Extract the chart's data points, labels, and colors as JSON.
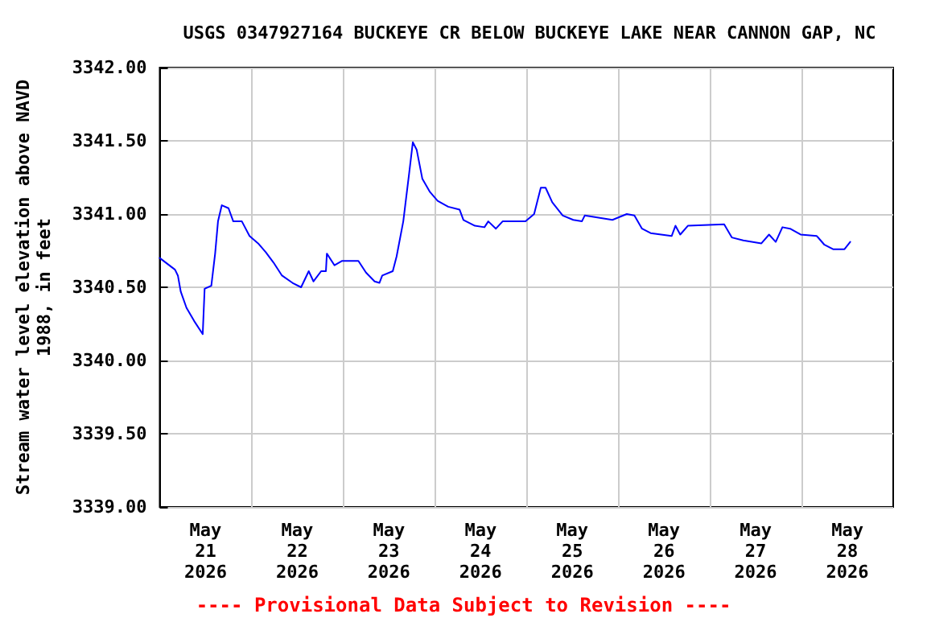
{
  "chart_data": {
    "type": "line",
    "title": "USGS 0347927164 BUCKEYE CR BELOW BUCKEYE LAKE NEAR CANNON GAP, NC",
    "ylabel": "Stream water level elevation above NAVD\n1988, in feet",
    "annotations": [
      "---- Provisional Data Subject to Revision ----"
    ],
    "xlim": [
      "2026-05-21T00:00",
      "2026-05-29T00:00"
    ],
    "xticks": [
      {
        "value": "2026-05-21T12:00",
        "label": "May\n21\n2026"
      },
      {
        "value": "2026-05-22T12:00",
        "label": "May\n22\n2026"
      },
      {
        "value": "2026-05-23T12:00",
        "label": "May\n23\n2026"
      },
      {
        "value": "2026-05-24T12:00",
        "label": "May\n24\n2026"
      },
      {
        "value": "2026-05-25T12:00",
        "label": "May\n25\n2026"
      },
      {
        "value": "2026-05-26T12:00",
        "label": "May\n26\n2026"
      },
      {
        "value": "2026-05-27T12:00",
        "label": "May\n27\n2026"
      },
      {
        "value": "2026-05-28T12:00",
        "label": "May\n28\n2026"
      },
      {
        "value": "2026-05-22T00:00",
        "label": null
      },
      {
        "value": "2026-05-23T00:00",
        "label": null
      },
      {
        "value": "2026-05-24T00:00",
        "label": null
      },
      {
        "value": "2026-05-25T00:00",
        "label": null
      },
      {
        "value": "2026-05-26T00:00",
        "label": null
      },
      {
        "value": "2026-05-27T00:00",
        "label": null
      },
      {
        "value": "2026-05-28T00:00",
        "label": null
      }
    ],
    "ylim": [
      3339,
      3342
    ],
    "yticks": [
      {
        "value": 3339,
        "label": "3339.00"
      },
      {
        "value": 3339.5,
        "label": "3339.50"
      },
      {
        "value": 3340,
        "label": "3340.00"
      },
      {
        "value": 3340.5,
        "label": "3340.50"
      },
      {
        "value": 3341,
        "label": "3341.00"
      },
      {
        "value": 3341.5,
        "label": "3341.50"
      },
      {
        "value": 3342,
        "label": "3342.00"
      }
    ],
    "grid": true,
    "marker": "none",
    "line_style": "solid",
    "series": [
      {
        "color": "#0000ff",
        "x": [
          "2026-05-21T00:00",
          "2026-05-21T04:00",
          "2026-05-21T04:45",
          "2026-05-21T05:30",
          "2026-05-21T07:00",
          "2026-05-21T09:00",
          "2026-05-21T11:15",
          "2026-05-21T11:45",
          "2026-05-21T13:30",
          "2026-05-21T14:30",
          "2026-05-21T15:15",
          "2026-05-21T16:15",
          "2026-05-21T18:00",
          "2026-05-21T19:15",
          "2026-05-21T21:30",
          "2026-05-21T23:30",
          "2026-05-22T01:45",
          "2026-05-22T03:45",
          "2026-05-22T05:45",
          "2026-05-22T08:00",
          "2026-05-22T10:45",
          "2026-05-22T13:00",
          "2026-05-22T15:00",
          "2026-05-22T16:15",
          "2026-05-22T18:15",
          "2026-05-22T19:30",
          "2026-05-22T19:45",
          "2026-05-22T21:45",
          "2026-05-22T23:45",
          "2026-05-23T04:00",
          "2026-05-23T06:00",
          "2026-05-23T08:15",
          "2026-05-23T09:30",
          "2026-05-23T10:15",
          "2026-05-23T13:00",
          "2026-05-23T14:00",
          "2026-05-23T15:45",
          "2026-05-23T17:15",
          "2026-05-23T18:15",
          "2026-05-23T19:15",
          "2026-05-23T20:45",
          "2026-05-23T22:45",
          "2026-05-24T00:45",
          "2026-05-24T03:30",
          "2026-05-24T06:30",
          "2026-05-24T07:30",
          "2026-05-24T10:30",
          "2026-05-24T13:00",
          "2026-05-24T14:00",
          "2026-05-24T16:00",
          "2026-05-24T17:45",
          "2026-05-24T23:45",
          "2026-05-25T02:00",
          "2026-05-25T03:45",
          "2026-05-25T05:00",
          "2026-05-25T06:45",
          "2026-05-25T09:30",
          "2026-05-25T12:15",
          "2026-05-25T14:30",
          "2026-05-25T15:15",
          "2026-05-25T22:30",
          "2026-05-26T02:15",
          "2026-05-26T04:15",
          "2026-05-26T06:15",
          "2026-05-26T08:30",
          "2026-05-26T14:00",
          "2026-05-26T15:00",
          "2026-05-26T16:15",
          "2026-05-26T18:15",
          "2026-05-27T03:45",
          "2026-05-27T05:45",
          "2026-05-27T08:45",
          "2026-05-27T13:30",
          "2026-05-27T15:30",
          "2026-05-27T17:15",
          "2026-05-27T19:00",
          "2026-05-27T21:00",
          "2026-05-27T23:45",
          "2026-05-28T04:00",
          "2026-05-28T06:00",
          "2026-05-28T08:15",
          "2026-05-28T11:15",
          "2026-05-28T12:45"
        ],
        "values": [
          3340.7,
          3340.62,
          3340.58,
          3340.47,
          3340.36,
          3340.27,
          3340.18,
          3340.49,
          3340.51,
          3340.73,
          3340.95,
          3341.06,
          3341.04,
          3340.95,
          3340.95,
          3340.85,
          3340.8,
          3340.74,
          3340.67,
          3340.58,
          3340.53,
          3340.5,
          3340.61,
          3340.54,
          3340.61,
          3340.61,
          3340.73,
          3340.65,
          3340.68,
          3340.68,
          3340.6,
          3340.54,
          3340.53,
          3340.58,
          3340.61,
          3340.71,
          3340.95,
          3341.27,
          3341.49,
          3341.44,
          3341.24,
          3341.15,
          3341.09,
          3341.05,
          3341.03,
          3340.96,
          3340.92,
          3340.91,
          3340.95,
          3340.9,
          3340.95,
          3340.95,
          3341.0,
          3341.18,
          3341.18,
          3341.08,
          3340.99,
          3340.96,
          3340.95,
          3340.99,
          3340.96,
          3341.0,
          3340.99,
          3340.9,
          3340.87,
          3340.85,
          3340.92,
          3340.86,
          3340.92,
          3340.93,
          3340.84,
          3340.82,
          3340.8,
          3340.86,
          3340.81,
          3340.91,
          3340.9,
          3340.86,
          3340.85,
          3340.79,
          3340.76,
          3340.76,
          3340.81
        ]
      }
    ]
  }
}
